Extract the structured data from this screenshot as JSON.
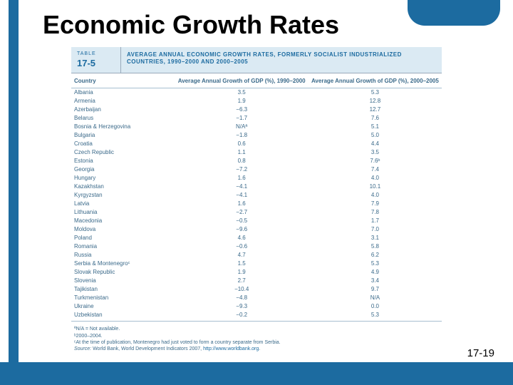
{
  "page": {
    "title": "Economic Growth Rates",
    "slide_number": "17-19",
    "accent_color": "#1c6ba0",
    "background_color": "#ffffff"
  },
  "table_header": {
    "label": "TABLE",
    "number": "17-5",
    "caption": "AVERAGE ANNUAL ECONOMIC GROWTH RATES, FORMERLY SOCIALIST INDUSTRIALIZED COUNTRIES, 1990–2000 AND 2000–2005"
  },
  "columns": {
    "c0": "Country",
    "c1": "Average Annual Growth of GDP (%), 1990–2000",
    "c2": "Average Annual Growth of GDP (%), 2000–2005"
  },
  "rows": [
    {
      "c": "Albania",
      "a": "3.5",
      "b": "5.3"
    },
    {
      "c": "Armenia",
      "a": "1.9",
      "b": "12.8"
    },
    {
      "c": "Azerbaijan",
      "a": "−6.3",
      "b": "12.7"
    },
    {
      "c": "Belarus",
      "a": "−1.7",
      "b": "7.6"
    },
    {
      "c": "Bosnia & Herzegovina",
      "a": "N/Aª",
      "b": "5.1"
    },
    {
      "c": "Bulgaria",
      "a": "−1.8",
      "b": "5.0"
    },
    {
      "c": "Croatia",
      "a": "0.6",
      "b": "4.4"
    },
    {
      "c": "Czech Republic",
      "a": "1.1",
      "b": "3.5"
    },
    {
      "c": "Estonia",
      "a": "0.8",
      "b": "7.6ᵇ"
    },
    {
      "c": "Georgia",
      "a": "−7.2",
      "b": "7.4"
    },
    {
      "c": "Hungary",
      "a": "1.6",
      "b": "4.0"
    },
    {
      "c": "Kazakhstan",
      "a": "−4.1",
      "b": "10.1"
    },
    {
      "c": "Kyrgyzstan",
      "a": "−4.1",
      "b": "4.0"
    },
    {
      "c": "Latvia",
      "a": "1.6",
      "b": "7.9"
    },
    {
      "c": "Lithuania",
      "a": "−2.7",
      "b": "7.8"
    },
    {
      "c": "Macedonia",
      "a": "−0.5",
      "b": "1.7"
    },
    {
      "c": "Moldova",
      "a": "−9.6",
      "b": "7.0"
    },
    {
      "c": "Poland",
      "a": "4.6",
      "b": "3.1"
    },
    {
      "c": "Romania",
      "a": "−0.6",
      "b": "5.8"
    },
    {
      "c": "Russia",
      "a": "4.7",
      "b": "6.2"
    },
    {
      "c": "Serbia & Montenegroᶜ",
      "a": "1.5",
      "b": "5.3"
    },
    {
      "c": "Slovak Republic",
      "a": "1.9",
      "b": "4.9"
    },
    {
      "c": "Slovenia",
      "a": "2.7",
      "b": "3.4"
    },
    {
      "c": "Tajikistan",
      "a": "−10.4",
      "b": "9.7"
    },
    {
      "c": "Turkmenistan",
      "a": "−4.8",
      "b": "N/A"
    },
    {
      "c": "Ukraine",
      "a": "−9.3",
      "b": "0.0"
    },
    {
      "c": "Uzbekistan",
      "a": "−0.2",
      "b": "5.3"
    }
  ],
  "footnotes": {
    "a": "ªN/A = Not available.",
    "b": "ᵇ2000–2004.",
    "c": "ᶜAt the time of publication, Montenegro had just voted to form a country separate from Serbia.",
    "source_label": "Source:",
    "source_text": "World Bank, World Development Indicators 2007,",
    "source_link": "http://www.worldbank.org"
  },
  "style": {
    "header_bg": "#dbeaf3",
    "text_color": "#3b6a8a",
    "row_fontsize": 8,
    "footnote_fontsize": 7,
    "title_fontsize": 36
  }
}
